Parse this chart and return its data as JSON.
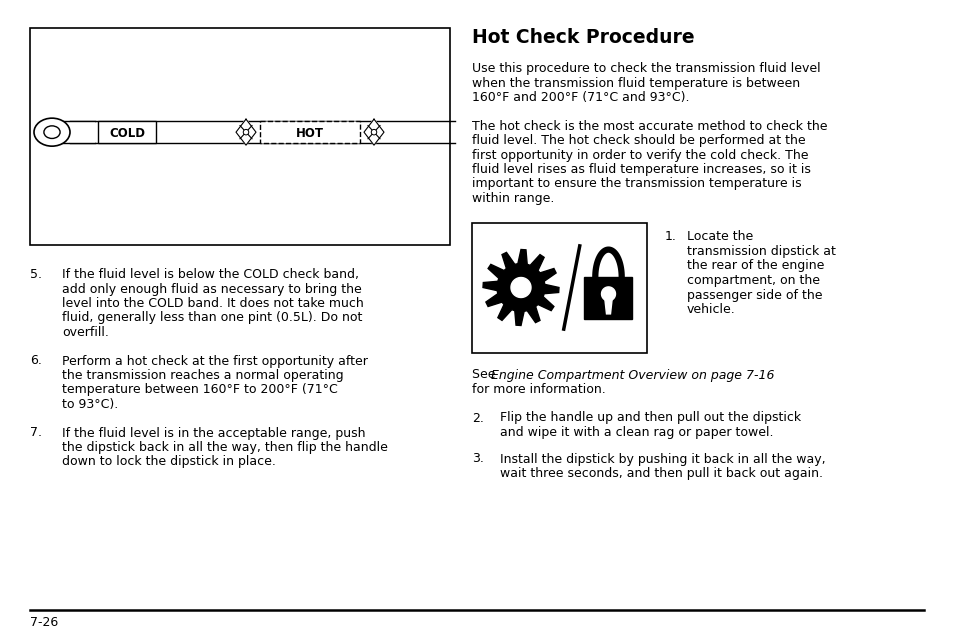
{
  "bg_color": "#ffffff",
  "title": "Hot Check Procedure",
  "page_number": "7-26",
  "fs_body": 9.0,
  "fs_title": 13.5,
  "fs_page": 9.0,
  "p1_lines": [
    "Use this procedure to check the transmission fluid level",
    "when the transmission fluid temperature is between",
    "160°F and 200°F (71°C and 93°C)."
  ],
  "p2_lines": [
    "The hot check is the most accurate method to check the",
    "fluid level. The hot check should be performed at the",
    "first opportunity in order to verify the cold check. The",
    "fluid level rises as fluid temperature increases, so it is",
    "important to ensure the transmission temperature is",
    "within range."
  ],
  "item5_lines": [
    "If the fluid level is below the COLD check band,",
    "add only enough fluid as necessary to bring the",
    "level into the COLD band. It does not take much",
    "fluid, generally less than one pint (0.5L). Do not",
    "overfill."
  ],
  "item6_lines": [
    "Perform a hot check at the first opportunity after",
    "the transmission reaches a normal operating",
    "temperature between 160°F to 200°F (71°C",
    "to 93°C)."
  ],
  "item7_lines": [
    "If the fluid level is in the acceptable range, push",
    "the dipstick back in all the way, then flip the handle",
    "down to lock the dipstick in place."
  ],
  "item1_lines": [
    "Locate the",
    "transmission dipstick at",
    "the rear of the engine",
    "compartment, on the",
    "passenger side of the",
    "vehicle."
  ],
  "see_normal": "See ",
  "see_italic": "Engine Compartment Overview on page 7-16",
  "see_end": "for more information.",
  "item2_lines": [
    "Flip the handle up and then pull out the dipstick",
    "and wipe it with a clean rag or paper towel."
  ],
  "item3_lines": [
    "Install the dipstick by pushing it back in all the way,",
    "wait three seconds, and then pull it back out again."
  ]
}
